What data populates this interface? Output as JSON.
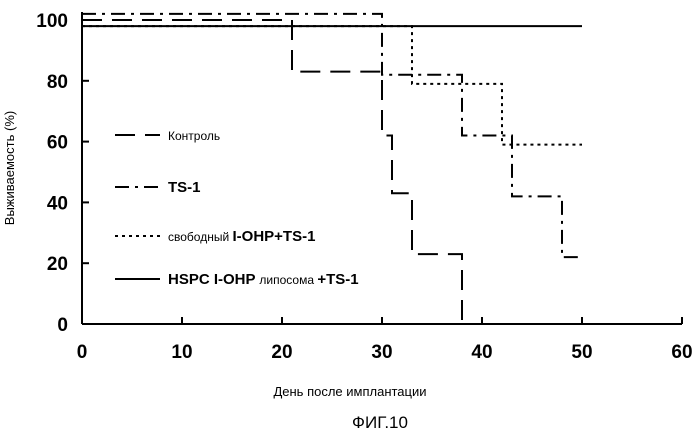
{
  "chart_data": {
    "type": "line",
    "step": true,
    "xlabel": "День после имплантации",
    "ylabel": "Выживаемость (%)",
    "caption": "ФИГ.10",
    "xlim": [
      0,
      60
    ],
    "ylim": [
      0,
      100
    ],
    "xticks": [
      "0",
      "10",
      "20",
      "30",
      "40",
      "50",
      "60"
    ],
    "yticks": [
      "0",
      "20",
      "40",
      "60",
      "80",
      "100"
    ],
    "grid": false,
    "legend_position": "center-left",
    "series": [
      {
        "legend": [
          {
            "text": "Контроль",
            "style": "small"
          }
        ],
        "dash": "dash",
        "x": [
          0,
          21,
          30,
          31,
          33,
          38
        ],
        "y": [
          100,
          83,
          62,
          43,
          23,
          0
        ]
      },
      {
        "legend": [
          {
            "text": "TS-1",
            "style": "bold"
          }
        ],
        "dash": "dashdot",
        "x": [
          0,
          30,
          38,
          43,
          48,
          50
        ],
        "y": [
          102,
          82,
          62,
          42,
          22,
          22
        ]
      },
      {
        "legend": [
          {
            "text": "свободный ",
            "style": "small"
          },
          {
            "text": "I-OHP+TS-1",
            "style": "bold"
          }
        ],
        "dash": "dot",
        "x": [
          0,
          33,
          42,
          50
        ],
        "y": [
          98,
          79,
          59,
          59
        ]
      },
      {
        "legend": [
          {
            "text": "HSPC I-OHP ",
            "style": "bold"
          },
          {
            "text": "липосома  ",
            "style": "small"
          },
          {
            "text": "+TS-1",
            "style": "bold"
          }
        ],
        "dash": "solid",
        "x": [
          0,
          50
        ],
        "y": [
          98,
          98
        ]
      }
    ]
  }
}
